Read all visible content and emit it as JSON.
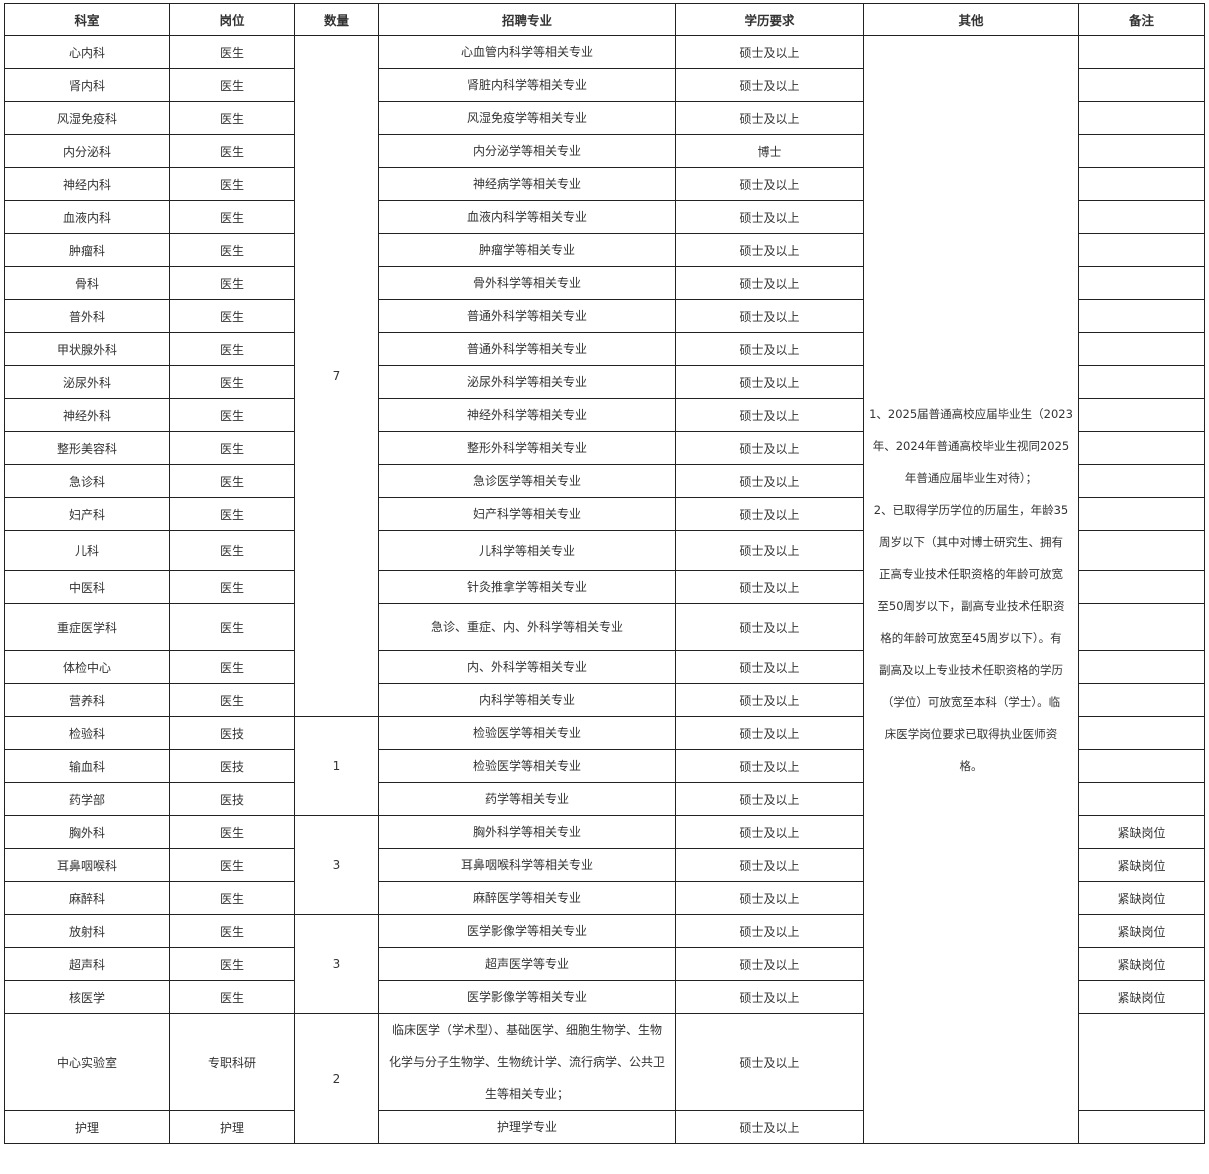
{
  "headers": [
    "科室",
    "岗位",
    "数量",
    "招聘专业",
    "学历要求",
    "其他",
    "备注"
  ],
  "rows": [
    {
      "dept": "心内科",
      "post": "医生",
      "major": [
        "心血管内科学等相关专业"
      ],
      "edu": "硕士及以上",
      "note": ""
    },
    {
      "dept": "肾内科",
      "post": "医生",
      "major": [
        "肾脏内科学等相关专业"
      ],
      "edu": "硕士及以上",
      "note": ""
    },
    {
      "dept": "风湿免疫科",
      "post": "医生",
      "major": [
        "风湿免疫学等相关专业"
      ],
      "edu": "硕士及以上",
      "note": ""
    },
    {
      "dept": "内分泌科",
      "post": "医生",
      "major": [
        "内分泌学等相关专业"
      ],
      "edu": "博士",
      "note": ""
    },
    {
      "dept": "神经内科",
      "post": "医生",
      "major": [
        "神经病学等相关专业"
      ],
      "edu": "硕士及以上",
      "note": ""
    },
    {
      "dept": "血液内科",
      "post": "医生",
      "major": [
        "血液内科学等相关专业"
      ],
      "edu": "硕士及以上",
      "note": ""
    },
    {
      "dept": "肿瘤科",
      "post": "医生",
      "major": [
        "肿瘤学等相关专业"
      ],
      "edu": "硕士及以上",
      "note": ""
    },
    {
      "dept": "骨科",
      "post": "医生",
      "major": [
        "骨外科学等相关专业"
      ],
      "edu": "硕士及以上",
      "note": ""
    },
    {
      "dept": "普外科",
      "post": "医生",
      "major": [
        "普通外科学等相关专业"
      ],
      "edu": "硕士及以上",
      "note": ""
    },
    {
      "dept": "甲状腺外科",
      "post": "医生",
      "major": [
        "普通外科学等相关专业"
      ],
      "edu": "硕士及以上",
      "note": ""
    },
    {
      "dept": "泌尿外科",
      "post": "医生",
      "major": [
        "泌尿外科学等相关专业"
      ],
      "edu": "硕士及以上",
      "note": ""
    },
    {
      "dept": "神经外科",
      "post": "医生",
      "major": [
        "神经外科学等相关专业"
      ],
      "edu": "硕士及以上",
      "note": ""
    },
    {
      "dept": "整形美容科",
      "post": "医生",
      "major": [
        "整形外科学等相关专业"
      ],
      "edu": "硕士及以上",
      "note": ""
    },
    {
      "dept": "急诊科",
      "post": "医生",
      "major": [
        "急诊医学等相关专业"
      ],
      "edu": "硕士及以上",
      "note": ""
    },
    {
      "dept": "妇产科",
      "post": "医生",
      "major": [
        "妇产科学等相关专业"
      ],
      "edu": "硕士及以上",
      "note": ""
    },
    {
      "dept": "儿科",
      "post": "医生",
      "major": [
        "儿科学等相关专业"
      ],
      "edu": "硕士及以上",
      "note": ""
    },
    {
      "dept": "中医科",
      "post": "医生",
      "major": [
        "针灸推拿学等相关专业"
      ],
      "edu": "硕士及以上",
      "note": ""
    },
    {
      "dept": "重症医学科",
      "post": "医生",
      "major": [
        "急诊、重症、内、外科学等相关专业"
      ],
      "edu": "硕士及以上",
      "note": ""
    },
    {
      "dept": "体检中心",
      "post": "医生",
      "major": [
        "内、外科学等相关专业"
      ],
      "edu": "硕士及以上",
      "note": ""
    },
    {
      "dept": "营养科",
      "post": "医生",
      "major": [
        "内科学等相关专业"
      ],
      "edu": "硕士及以上",
      "note": ""
    },
    {
      "dept": "检验科",
      "post": "医技",
      "major": [
        "检验医学等相关专业"
      ],
      "edu": "硕士及以上",
      "note": ""
    },
    {
      "dept": "输血科",
      "post": "医技",
      "major": [
        "检验医学等相关专业"
      ],
      "edu": "硕士及以上",
      "note": ""
    },
    {
      "dept": "药学部",
      "post": "医技",
      "major": [
        "药学等相关专业"
      ],
      "edu": "硕士及以上",
      "note": ""
    },
    {
      "dept": "胸外科",
      "post": "医生",
      "major": [
        "胸外科学等相关专业"
      ],
      "edu": "硕士及以上",
      "note": "紧缺岗位"
    },
    {
      "dept": "耳鼻咽喉科",
      "post": "医生",
      "major": [
        "耳鼻咽喉科学等相关专业"
      ],
      "edu": "硕士及以上",
      "note": "紧缺岗位"
    },
    {
      "dept": "麻醉科",
      "post": "医生",
      "major": [
        "麻醉医学等相关专业"
      ],
      "edu": "硕士及以上",
      "note": "紧缺岗位"
    },
    {
      "dept": "放射科",
      "post": "医生",
      "major": [
        "医学影像学等相关专业"
      ],
      "edu": "硕士及以上",
      "note": "紧缺岗位"
    },
    {
      "dept": "超声科",
      "post": "医生",
      "major": [
        "超声医学等专业"
      ],
      "edu": "硕士及以上",
      "note": "紧缺岗位"
    },
    {
      "dept": "核医学",
      "post": "医生",
      "major": [
        "医学影像学等相关专业"
      ],
      "edu": "硕士及以上",
      "note": "紧缺岗位"
    },
    {
      "dept": "中心实验室",
      "post": "专职科研",
      "major": [
        "临床医学（学术型）、基础医学、细胞生物学、生物",
        "化学与分子生物学、生物统计学、流行病学、公共卫",
        "生等相关专业；"
      ],
      "edu": "硕士及以上",
      "note": ""
    },
    {
      "dept": "护理",
      "post": "护理",
      "major": [
        "护理学专业"
      ],
      "edu": "硕士及以上",
      "note": ""
    }
  ],
  "quantity_groups": [
    {
      "value": "7",
      "rows": 20
    },
    {
      "value": "1",
      "rows": 3
    },
    {
      "value": "3",
      "rows": 3
    },
    {
      "value": "3",
      "rows": 3
    },
    {
      "value": "2",
      "rows": 2
    }
  ],
  "other": [
    "1、2025届普通高校应届毕业生（2023",
    "年、2024年普通高校毕业生视同2025",
    "年普通应届毕业生对待）；",
    "2、已取得学历学位的历届生，年龄35",
    "周岁以下（其中对博士研究生、拥有",
    "正高专业技术任职资格的年龄可放宽",
    "至50周岁以下，副高专业技术任职资",
    "格的年龄可放宽至45周岁以下）。有",
    "副高及以上专业技术任职资格的学历",
    "（学位）可放宽至本科（学士）。临",
    "床医学岗位要求已取得执业医师资",
    "格。"
  ]
}
